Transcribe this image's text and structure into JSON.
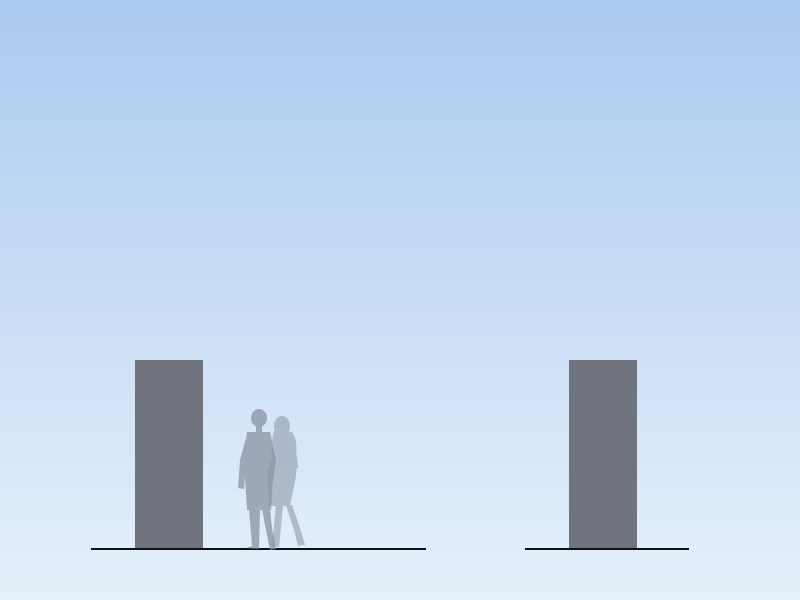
{
  "scene": {
    "sky_top_color": "#aacbf0",
    "sky_bottom_color": "#e6f0fb",
    "block_color": "#70747e",
    "ground_line_color": "#111111",
    "silhouette_color": "#8993a3",
    "elements": [
      "left-block",
      "right-block",
      "left-ground-line",
      "right-ground-line",
      "person-man-silhouette",
      "person-woman-silhouette"
    ]
  }
}
